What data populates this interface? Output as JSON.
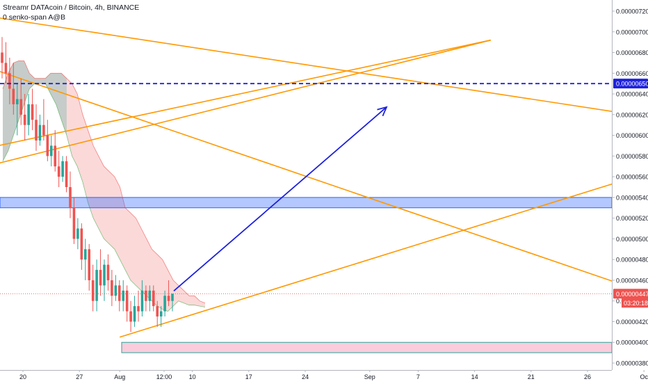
{
  "header": {
    "title": "Streamr DATAcoin / Bitcoin, 4h, BINANCE",
    "indicator": "0 senko-span A@B"
  },
  "chart_data": {
    "type": "candlestick",
    "title": "Streamr DATAcoin / Bitcoin, 4h, BINANCE",
    "y_ticks": [
      3.8e-06,
      4e-06,
      4.2e-06,
      4.4e-06,
      4.6e-06,
      4.8e-06,
      5e-06,
      5.2e-06,
      5.4e-06,
      5.6e-06,
      5.8e-06,
      6e-06,
      6.2e-06,
      6.4e-06,
      6.6e-06,
      6.8e-06,
      7e-06,
      7.2e-06
    ],
    "y_tick_labels": [
      "0.00000380",
      "0.00000400",
      "0.00000420",
      "0.00000440",
      "0.00000460",
      "0.00000480",
      "0.00000500",
      "0.00000520",
      "0.00000540",
      "0.00000560",
      "0.00000580",
      "0.00000600",
      "0.00000620",
      "0.00000640",
      "0.00000660",
      "0.00000680",
      "0.00000700",
      "0.00000720"
    ],
    "x_labels": [
      {
        "t": 20,
        "label": "20"
      },
      {
        "t": 27,
        "label": "27"
      },
      {
        "t": 32,
        "label": "Aug"
      },
      {
        "t": 37.5,
        "label": "12:00"
      },
      {
        "t": 41,
        "label": "10"
      },
      {
        "t": 48,
        "label": "17"
      },
      {
        "t": 55,
        "label": "24"
      },
      {
        "t": 63,
        "label": "Sep"
      },
      {
        "t": 69,
        "label": "7"
      },
      {
        "t": 76,
        "label": "14"
      },
      {
        "t": 83,
        "label": "21"
      },
      {
        "t": 90,
        "label": "26"
      },
      {
        "t": 97,
        "label": "Oc"
      }
    ],
    "price_markers": [
      {
        "value": 6.5e-06,
        "label": "0.00000650",
        "color": "#1e22dc"
      },
      {
        "value": 4.47e-06,
        "label": "0.00000447",
        "color": "#ef5350"
      }
    ],
    "countdown": "03:20:18",
    "candles": [
      {
        "o": 6.8,
        "h": 6.95,
        "l": 6.55,
        "c": 6.7
      },
      {
        "o": 6.7,
        "h": 6.9,
        "l": 6.5,
        "c": 6.6
      },
      {
        "o": 6.6,
        "h": 6.75,
        "l": 6.3,
        "c": 6.45
      },
      {
        "o": 6.45,
        "h": 6.7,
        "l": 6.2,
        "c": 6.3
      },
      {
        "o": 6.3,
        "h": 6.5,
        "l": 6.0,
        "c": 6.35
      },
      {
        "o": 6.35,
        "h": 6.55,
        "l": 6.1,
        "c": 6.2
      },
      {
        "o": 6.2,
        "h": 6.4,
        "l": 5.95,
        "c": 6.1
      },
      {
        "o": 6.1,
        "h": 6.4,
        "l": 6.0,
        "c": 6.3
      },
      {
        "o": 6.3,
        "h": 6.45,
        "l": 6.05,
        "c": 6.15
      },
      {
        "o": 6.15,
        "h": 6.3,
        "l": 5.85,
        "c": 5.95
      },
      {
        "o": 5.95,
        "h": 6.2,
        "l": 5.9,
        "c": 6.1
      },
      {
        "o": 6.1,
        "h": 6.35,
        "l": 5.95,
        "c": 6.0
      },
      {
        "o": 6.0,
        "h": 6.15,
        "l": 5.75,
        "c": 5.8
      },
      {
        "o": 5.8,
        "h": 6.0,
        "l": 5.7,
        "c": 5.9
      },
      {
        "o": 5.9,
        "h": 6.05,
        "l": 5.65,
        "c": 5.7
      },
      {
        "o": 5.7,
        "h": 5.85,
        "l": 5.5,
        "c": 5.6
      },
      {
        "o": 5.6,
        "h": 5.8,
        "l": 5.55,
        "c": 5.75
      },
      {
        "o": 5.75,
        "h": 5.8,
        "l": 5.45,
        "c": 5.5
      },
      {
        "o": 5.5,
        "h": 5.65,
        "l": 5.2,
        "c": 5.3
      },
      {
        "o": 5.3,
        "h": 5.4,
        "l": 4.95,
        "c": 5.0
      },
      {
        "o": 5.0,
        "h": 5.2,
        "l": 4.9,
        "c": 5.1
      },
      {
        "o": 5.1,
        "h": 5.15,
        "l": 4.7,
        "c": 4.8
      },
      {
        "o": 4.8,
        "h": 5.0,
        "l": 4.6,
        "c": 4.9
      },
      {
        "o": 4.9,
        "h": 4.95,
        "l": 4.5,
        "c": 4.6
      },
      {
        "o": 4.6,
        "h": 4.75,
        "l": 4.3,
        "c": 4.4
      },
      {
        "o": 4.4,
        "h": 4.8,
        "l": 4.3,
        "c": 4.7
      },
      {
        "o": 4.7,
        "h": 4.9,
        "l": 4.45,
        "c": 4.55
      },
      {
        "o": 4.55,
        "h": 4.8,
        "l": 4.4,
        "c": 4.75
      },
      {
        "o": 4.75,
        "h": 4.85,
        "l": 4.5,
        "c": 4.6
      },
      {
        "o": 4.6,
        "h": 4.7,
        "l": 4.35,
        "c": 4.45
      },
      {
        "o": 4.45,
        "h": 4.65,
        "l": 4.4,
        "c": 4.55
      },
      {
        "o": 4.55,
        "h": 4.6,
        "l": 4.3,
        "c": 4.4
      },
      {
        "o": 4.4,
        "h": 4.6,
        "l": 4.3,
        "c": 4.5
      },
      {
        "o": 4.5,
        "h": 4.55,
        "l": 4.2,
        "c": 4.3
      },
      {
        "o": 4.3,
        "h": 4.4,
        "l": 4.1,
        "c": 4.2
      },
      {
        "o": 4.2,
        "h": 4.45,
        "l": 4.15,
        "c": 4.35
      },
      {
        "o": 4.35,
        "h": 4.5,
        "l": 4.2,
        "c": 4.3
      },
      {
        "o": 4.3,
        "h": 4.6,
        "l": 4.25,
        "c": 4.5
      },
      {
        "o": 4.5,
        "h": 4.55,
        "l": 4.3,
        "c": 4.4
      },
      {
        "o": 4.4,
        "h": 4.55,
        "l": 4.3,
        "c": 4.5
      },
      {
        "o": 4.5,
        "h": 4.55,
        "l": 4.3,
        "c": 4.35
      },
      {
        "o": 4.35,
        "h": 4.4,
        "l": 4.15,
        "c": 4.25
      },
      {
        "o": 4.25,
        "h": 4.35,
        "l": 4.15,
        "c": 4.3
      },
      {
        "o": 4.3,
        "h": 4.5,
        "l": 4.25,
        "c": 4.45
      },
      {
        "o": 4.45,
        "h": 4.6,
        "l": 4.35,
        "c": 4.4
      },
      {
        "o": 4.4,
        "h": 4.47,
        "l": 4.3,
        "c": 4.47
      }
    ],
    "ichimoku_cloud": {
      "upper": [
        6.45,
        6.6,
        6.7,
        6.72,
        6.72,
        6.6,
        6.55,
        6.55,
        6.55,
        6.6,
        6.6,
        6.6,
        6.55,
        6.5,
        6.4,
        6.2,
        6.05,
        5.9,
        5.8,
        5.7,
        5.65,
        5.6,
        5.5,
        5.3,
        5.25,
        5.2,
        5.1,
        5.0,
        4.9,
        4.85,
        4.8,
        4.7,
        4.6,
        4.55,
        4.5,
        4.45,
        4.45,
        4.4,
        4.38
      ],
      "lower": [
        5.75,
        5.85,
        6.0,
        6.15,
        6.3,
        6.45,
        6.5,
        6.5,
        6.5,
        6.4,
        6.3,
        6.15,
        6.0,
        5.8,
        5.7,
        5.55,
        5.35,
        5.2,
        5.1,
        5.0,
        4.95,
        4.9,
        4.8,
        4.7,
        4.6,
        4.55,
        4.5,
        4.45,
        4.4,
        4.35,
        4.32,
        4.3,
        4.35,
        4.4,
        4.38,
        4.36,
        4.36,
        4.35,
        4.34
      ]
    },
    "zones": [
      {
        "type": "support/resistance band",
        "from": 5.3e-06,
        "to": 5.4e-06,
        "color": "#2962ff"
      },
      {
        "type": "support band",
        "from": 3.9e-06,
        "to": 4e-06,
        "color": "#26a69a"
      }
    ],
    "arrow": {
      "from_price": 4.47e-06,
      "to_price": 6.3e-06,
      "color": "#1e22dc"
    }
  }
}
